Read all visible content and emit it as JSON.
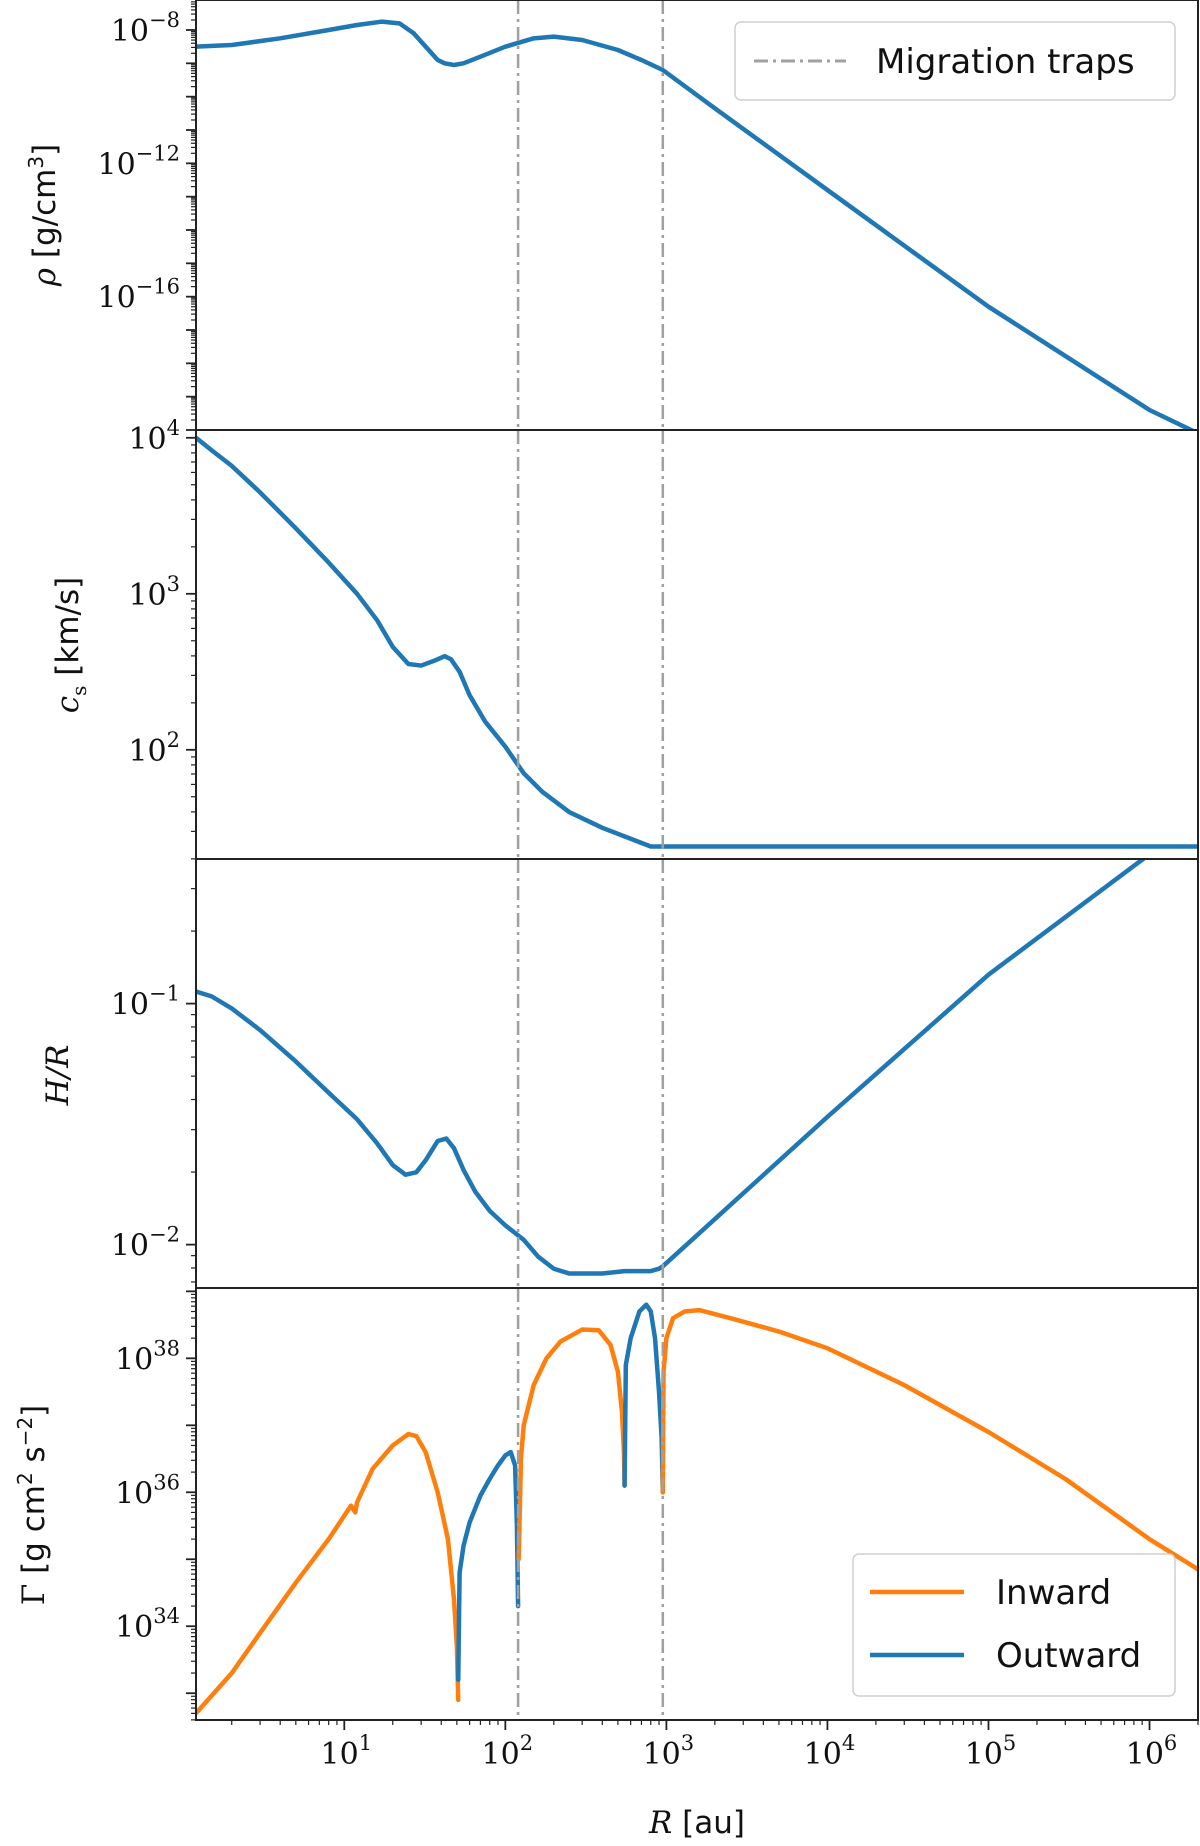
{
  "chart_data": {
    "type": "line",
    "x_scale": "log",
    "xlim_au": [
      1.2,
      2000000
    ],
    "xlabel": "R [au]",
    "x_ticks": [
      10,
      100,
      1000,
      10000,
      100000,
      1000000
    ],
    "x_tick_labels": [
      {
        "base": "10",
        "exp": "1"
      },
      {
        "base": "10",
        "exp": "2"
      },
      {
        "base": "10",
        "exp": "3"
      },
      {
        "base": "10",
        "exp": "4"
      },
      {
        "base": "10",
        "exp": "5"
      },
      {
        "base": "10",
        "exp": "6"
      }
    ],
    "migration_traps_au": [
      120,
      950
    ],
    "colors": {
      "outward": "#1f77b4",
      "inward": "#ff7f0e",
      "traps": "#a0a0a0"
    },
    "panels": [
      {
        "id": "rho",
        "ylabel": "ρ [g/cm³]",
        "y_scale": "log",
        "ylim_log10": [
          -20,
          -7.1
        ],
        "y_tick_labels": [
          {
            "log10": -8,
            "base": "10",
            "exp": "−8"
          },
          {
            "log10": -12,
            "base": "10",
            "exp": "−12"
          },
          {
            "log10": -16,
            "base": "10",
            "exp": "−16"
          }
        ],
        "legend": {
          "placement": "top-right",
          "entries": [
            {
              "label": "Migration traps",
              "style": "traps"
            }
          ]
        },
        "series": [
          {
            "name": "",
            "color": "outward",
            "x": [
              1.2,
              2,
              4,
              8,
              12,
              17,
              22,
              27,
              32,
              38,
              42,
              48,
              55,
              70,
              100,
              150,
              200,
              300,
              500,
              700,
              950,
              2000,
              10000,
              100000,
              1000000,
              2000000
            ],
            "y_log10": [
              -8.5,
              -8.45,
              -8.25,
              -8.0,
              -7.85,
              -7.75,
              -7.8,
              -8.1,
              -8.5,
              -8.9,
              -9.0,
              -9.05,
              -9.0,
              -8.8,
              -8.5,
              -8.25,
              -8.2,
              -8.3,
              -8.6,
              -8.9,
              -9.2,
              -10.35,
              -12.8,
              -16.3,
              -19.4,
              -20.1
            ]
          }
        ]
      },
      {
        "id": "cs",
        "ylabel": "c_s [km/s]",
        "y_scale": "log",
        "ylim_log10": [
          1.3,
          4.05
        ],
        "y_tick_labels": [
          {
            "log10": 4,
            "base": "10",
            "exp": "4"
          },
          {
            "log10": 3,
            "base": "10",
            "exp": "3"
          },
          {
            "log10": 2,
            "base": "10",
            "exp": "2"
          }
        ],
        "series": [
          {
            "name": "",
            "color": "outward",
            "x": [
              1.2,
              1.5,
              2,
              3,
              5,
              8,
              12,
              16,
              20,
              25,
              30,
              36,
              42,
              46,
              52,
              60,
              75,
              100,
              130,
              170,
              250,
              400,
              600,
              800,
              1000,
              10000,
              100000,
              1000000,
              2000000
            ],
            "y_log10": [
              4.0,
              3.92,
              3.82,
              3.65,
              3.42,
              3.2,
              3.0,
              2.83,
              2.66,
              2.55,
              2.54,
              2.57,
              2.6,
              2.58,
              2.5,
              2.35,
              2.18,
              2.02,
              1.85,
              1.73,
              1.6,
              1.5,
              1.43,
              1.38,
              1.38,
              1.38,
              1.38,
              1.38,
              1.38
            ]
          }
        ]
      },
      {
        "id": "hr",
        "ylabel": "H/R",
        "y_scale": "log",
        "ylim_log10": [
          -2.18,
          -0.4
        ],
        "y_tick_labels": [
          {
            "log10": -1,
            "base": "10",
            "exp": "−1"
          },
          {
            "log10": -2,
            "base": "10",
            "exp": "−2"
          }
        ],
        "series": [
          {
            "name": "",
            "color": "outward",
            "x": [
              1.2,
              1.5,
              2,
              3,
              5,
              8,
              12,
              16,
              20,
              24,
              28,
              32,
              38,
              43,
              48,
              55,
              65,
              80,
              100,
              130,
              160,
              200,
              250,
              400,
              550,
              700,
              800,
              900,
              950,
              10000,
              100000,
              1000000,
              2000000
            ],
            "y_log10": [
              -0.95,
              -0.97,
              -1.02,
              -1.11,
              -1.24,
              -1.37,
              -1.48,
              -1.58,
              -1.67,
              -1.71,
              -1.7,
              -1.65,
              -1.57,
              -1.56,
              -1.6,
              -1.69,
              -1.78,
              -1.86,
              -1.92,
              -1.98,
              -2.05,
              -2.1,
              -2.12,
              -2.12,
              -2.11,
              -2.11,
              -2.11,
              -2.1,
              -2.09,
              -1.47,
              -0.88,
              -0.38,
              -0.22
            ]
          }
        ]
      },
      {
        "id": "gamma",
        "ylabel": "Γ [g cm² s⁻²]",
        "y_scale": "log",
        "ylim_log10": [
          32.6,
          39.05
        ],
        "y_tick_labels": [
          {
            "log10": 38,
            "base": "10",
            "exp": "38"
          },
          {
            "log10": 36,
            "base": "10",
            "exp": "36"
          },
          {
            "log10": 34,
            "base": "10",
            "exp": "34"
          }
        ],
        "legend": {
          "placement": "bottom-right",
          "entries": [
            {
              "label": "Inward",
              "style": "inward"
            },
            {
              "label": "Outward",
              "style": "outward"
            }
          ]
        },
        "series": [
          {
            "name": "Inward",
            "color": "inward",
            "x": [
              1.2,
              2,
              3,
              5,
              8,
              11,
              11.7,
              12,
              15,
              20,
              25,
              28,
              32,
              38,
              44,
              48,
              50,
              51
            ],
            "y_log10": [
              32.7,
              33.3,
              33.9,
              34.65,
              35.3,
              35.8,
              35.7,
              35.85,
              36.35,
              36.7,
              36.87,
              36.84,
              36.6,
              36.0,
              35.3,
              34.4,
              33.7,
              32.9
            ]
          },
          {
            "name": "Outward",
            "color": "outward",
            "x": [
              51,
              52,
              55,
              60,
              70,
              80,
              90,
              100,
              108,
              115,
              118,
              120
            ],
            "y_log10": [
              33.2,
              34.8,
              35.2,
              35.55,
              35.95,
              36.2,
              36.4,
              36.55,
              36.6,
              36.4,
              35.5,
              34.3
            ]
          },
          {
            "name": "Inward",
            "color": "inward",
            "x": [
              121,
              125,
              130,
              150,
              180,
              220,
              300,
              380,
              450,
              500,
              530,
              545,
              550
            ],
            "y_log10": [
              35.0,
              36.5,
              37.0,
              37.6,
              38.0,
              38.25,
              38.43,
              38.42,
              38.2,
              37.8,
              37.2,
              36.6,
              36.1
            ]
          },
          {
            "name": "Outward",
            "color": "outward",
            "x": [
              550,
              560,
              600,
              680,
              750,
              800,
              850,
              900,
              935,
              950
            ],
            "y_log10": [
              36.1,
              37.9,
              38.3,
              38.7,
              38.8,
              38.7,
              38.3,
              37.5,
              36.8,
              36.0
            ]
          },
          {
            "name": "Inward",
            "color": "inward",
            "x": [
              950,
              960,
              1000,
              1100,
              1300,
              1600,
              2500,
              5000,
              10000,
              30000,
              100000,
              300000,
              1000000,
              2000000
            ],
            "y_log10": [
              36.0,
              37.8,
              38.3,
              38.6,
              38.7,
              38.72,
              38.6,
              38.4,
              38.15,
              37.6,
              36.9,
              36.2,
              35.3,
              34.85
            ]
          }
        ]
      }
    ]
  }
}
